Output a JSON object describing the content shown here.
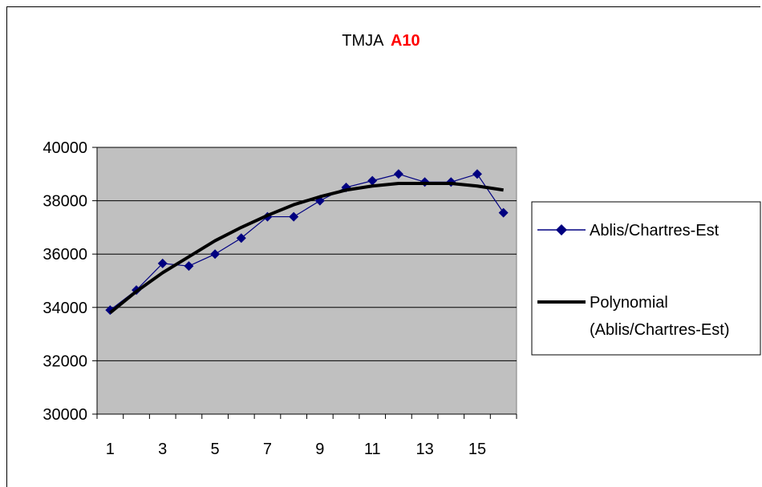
{
  "chart_data": {
    "type": "line",
    "title": "TMJA",
    "title_highlight": "A10",
    "title_highlight_color": "#ff0000",
    "x": [
      1,
      2,
      3,
      4,
      5,
      6,
      7,
      8,
      9,
      10,
      11,
      12,
      13,
      14,
      15,
      16
    ],
    "x_tick_labels": [
      "1",
      "3",
      "5",
      "7",
      "9",
      "11",
      "13",
      "15"
    ],
    "x_tick_values": [
      1,
      3,
      5,
      7,
      9,
      11,
      13,
      15
    ],
    "y_tick_labels": [
      "40000",
      "38000",
      "36000",
      "34000",
      "32000",
      "30000"
    ],
    "y_tick_values": [
      40000,
      38000,
      36000,
      34000,
      32000,
      30000
    ],
    "ylim": [
      30000,
      40000
    ],
    "xlim": [
      0.5,
      16.5
    ],
    "grid": true,
    "plot_background": "#c0c0c0",
    "legend_position": "right",
    "series": [
      {
        "name": "Ablis/Chartres-Est",
        "color": "#000080",
        "marker": "diamond",
        "values": [
          33900,
          34650,
          35650,
          35550,
          36000,
          36600,
          37400,
          37400,
          38000,
          38500,
          38750,
          39000,
          38700,
          38700,
          39000,
          37550
        ]
      },
      {
        "name_line1": "Polynomial",
        "name_line2": "(Ablis/Chartres-Est)",
        "color": "#000000",
        "type": "trendline",
        "values": [
          33800,
          34600,
          35300,
          35900,
          36500,
          37000,
          37450,
          37850,
          38150,
          38400,
          38550,
          38650,
          38650,
          38650,
          38550,
          38400
        ]
      }
    ]
  }
}
